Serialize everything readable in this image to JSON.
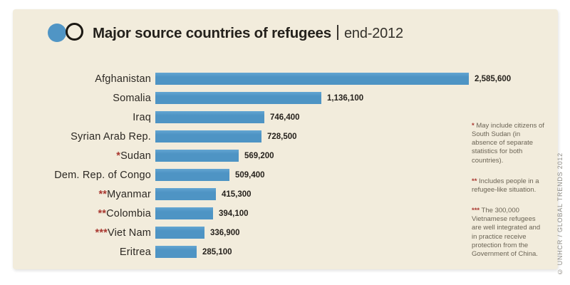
{
  "header": {
    "title": "Major source countries of refugees",
    "period": "end-2012"
  },
  "chart_data": {
    "type": "bar",
    "orientation": "horizontal",
    "title": "Major source countries of refugees",
    "subtitle": "end-2012",
    "xlabel": "",
    "ylabel": "",
    "grid": false,
    "legend": false,
    "bar_color": "#5095c5",
    "categories": [
      "Afghanistan",
      "Somalia",
      "Iraq",
      "Syrian Arab Rep.",
      "Sudan",
      "Dem. Rep. of Congo",
      "Myanmar",
      "Colombia",
      "Viet Nam",
      "Eritrea"
    ],
    "values": [
      2585600,
      1136100,
      746400,
      728500,
      569200,
      509400,
      415300,
      394100,
      336900,
      285100
    ],
    "rows": [
      {
        "marker": "",
        "label": "Afghanistan",
        "value": 2585600,
        "value_label": "2,585,600"
      },
      {
        "marker": "",
        "label": "Somalia",
        "value": 1136100,
        "value_label": "1,136,100"
      },
      {
        "marker": "",
        "label": "Iraq",
        "value": 746400,
        "value_label": "746,400"
      },
      {
        "marker": "",
        "label": "Syrian Arab Rep.",
        "value": 728500,
        "value_label": "728,500"
      },
      {
        "marker": "*",
        "label": "Sudan",
        "value": 569200,
        "value_label": "569,200"
      },
      {
        "marker": "",
        "label": "Dem. Rep. of Congo",
        "value": 509400,
        "value_label": "509,400"
      },
      {
        "marker": "**",
        "label": "Myanmar",
        "value": 415300,
        "value_label": "415,300"
      },
      {
        "marker": "**",
        "label": "Colombia",
        "value": 394100,
        "value_label": "394,100"
      },
      {
        "marker": "***",
        "label": "Viet Nam",
        "value": 336900,
        "value_label": "336,900"
      },
      {
        "marker": "",
        "label": "Eritrea",
        "value": 285100,
        "value_label": "285,100"
      }
    ]
  },
  "footnotes": [
    {
      "marker": "*",
      "text": "May include citizens of South Sudan (in absence of separate statistics for both countries)."
    },
    {
      "marker": "**",
      "text": "Includes people in a refugee-like situation."
    },
    {
      "marker": "***",
      "text": "The 300,000 Vietnamese refugees are well integrated and in practice receive protection from the Government of China."
    }
  ],
  "credit": "© UNHCR / GLOBAL TRENDS 2012",
  "colors": {
    "page_background": "#ffffff",
    "card_background": "#f2ecdc",
    "bar": "#5095c5",
    "title_text": "#24211c",
    "label_text": "#2c2823",
    "marker_red": "#a93830",
    "footnote_text": "#6b6455",
    "credit_text": "#8f8d85"
  }
}
